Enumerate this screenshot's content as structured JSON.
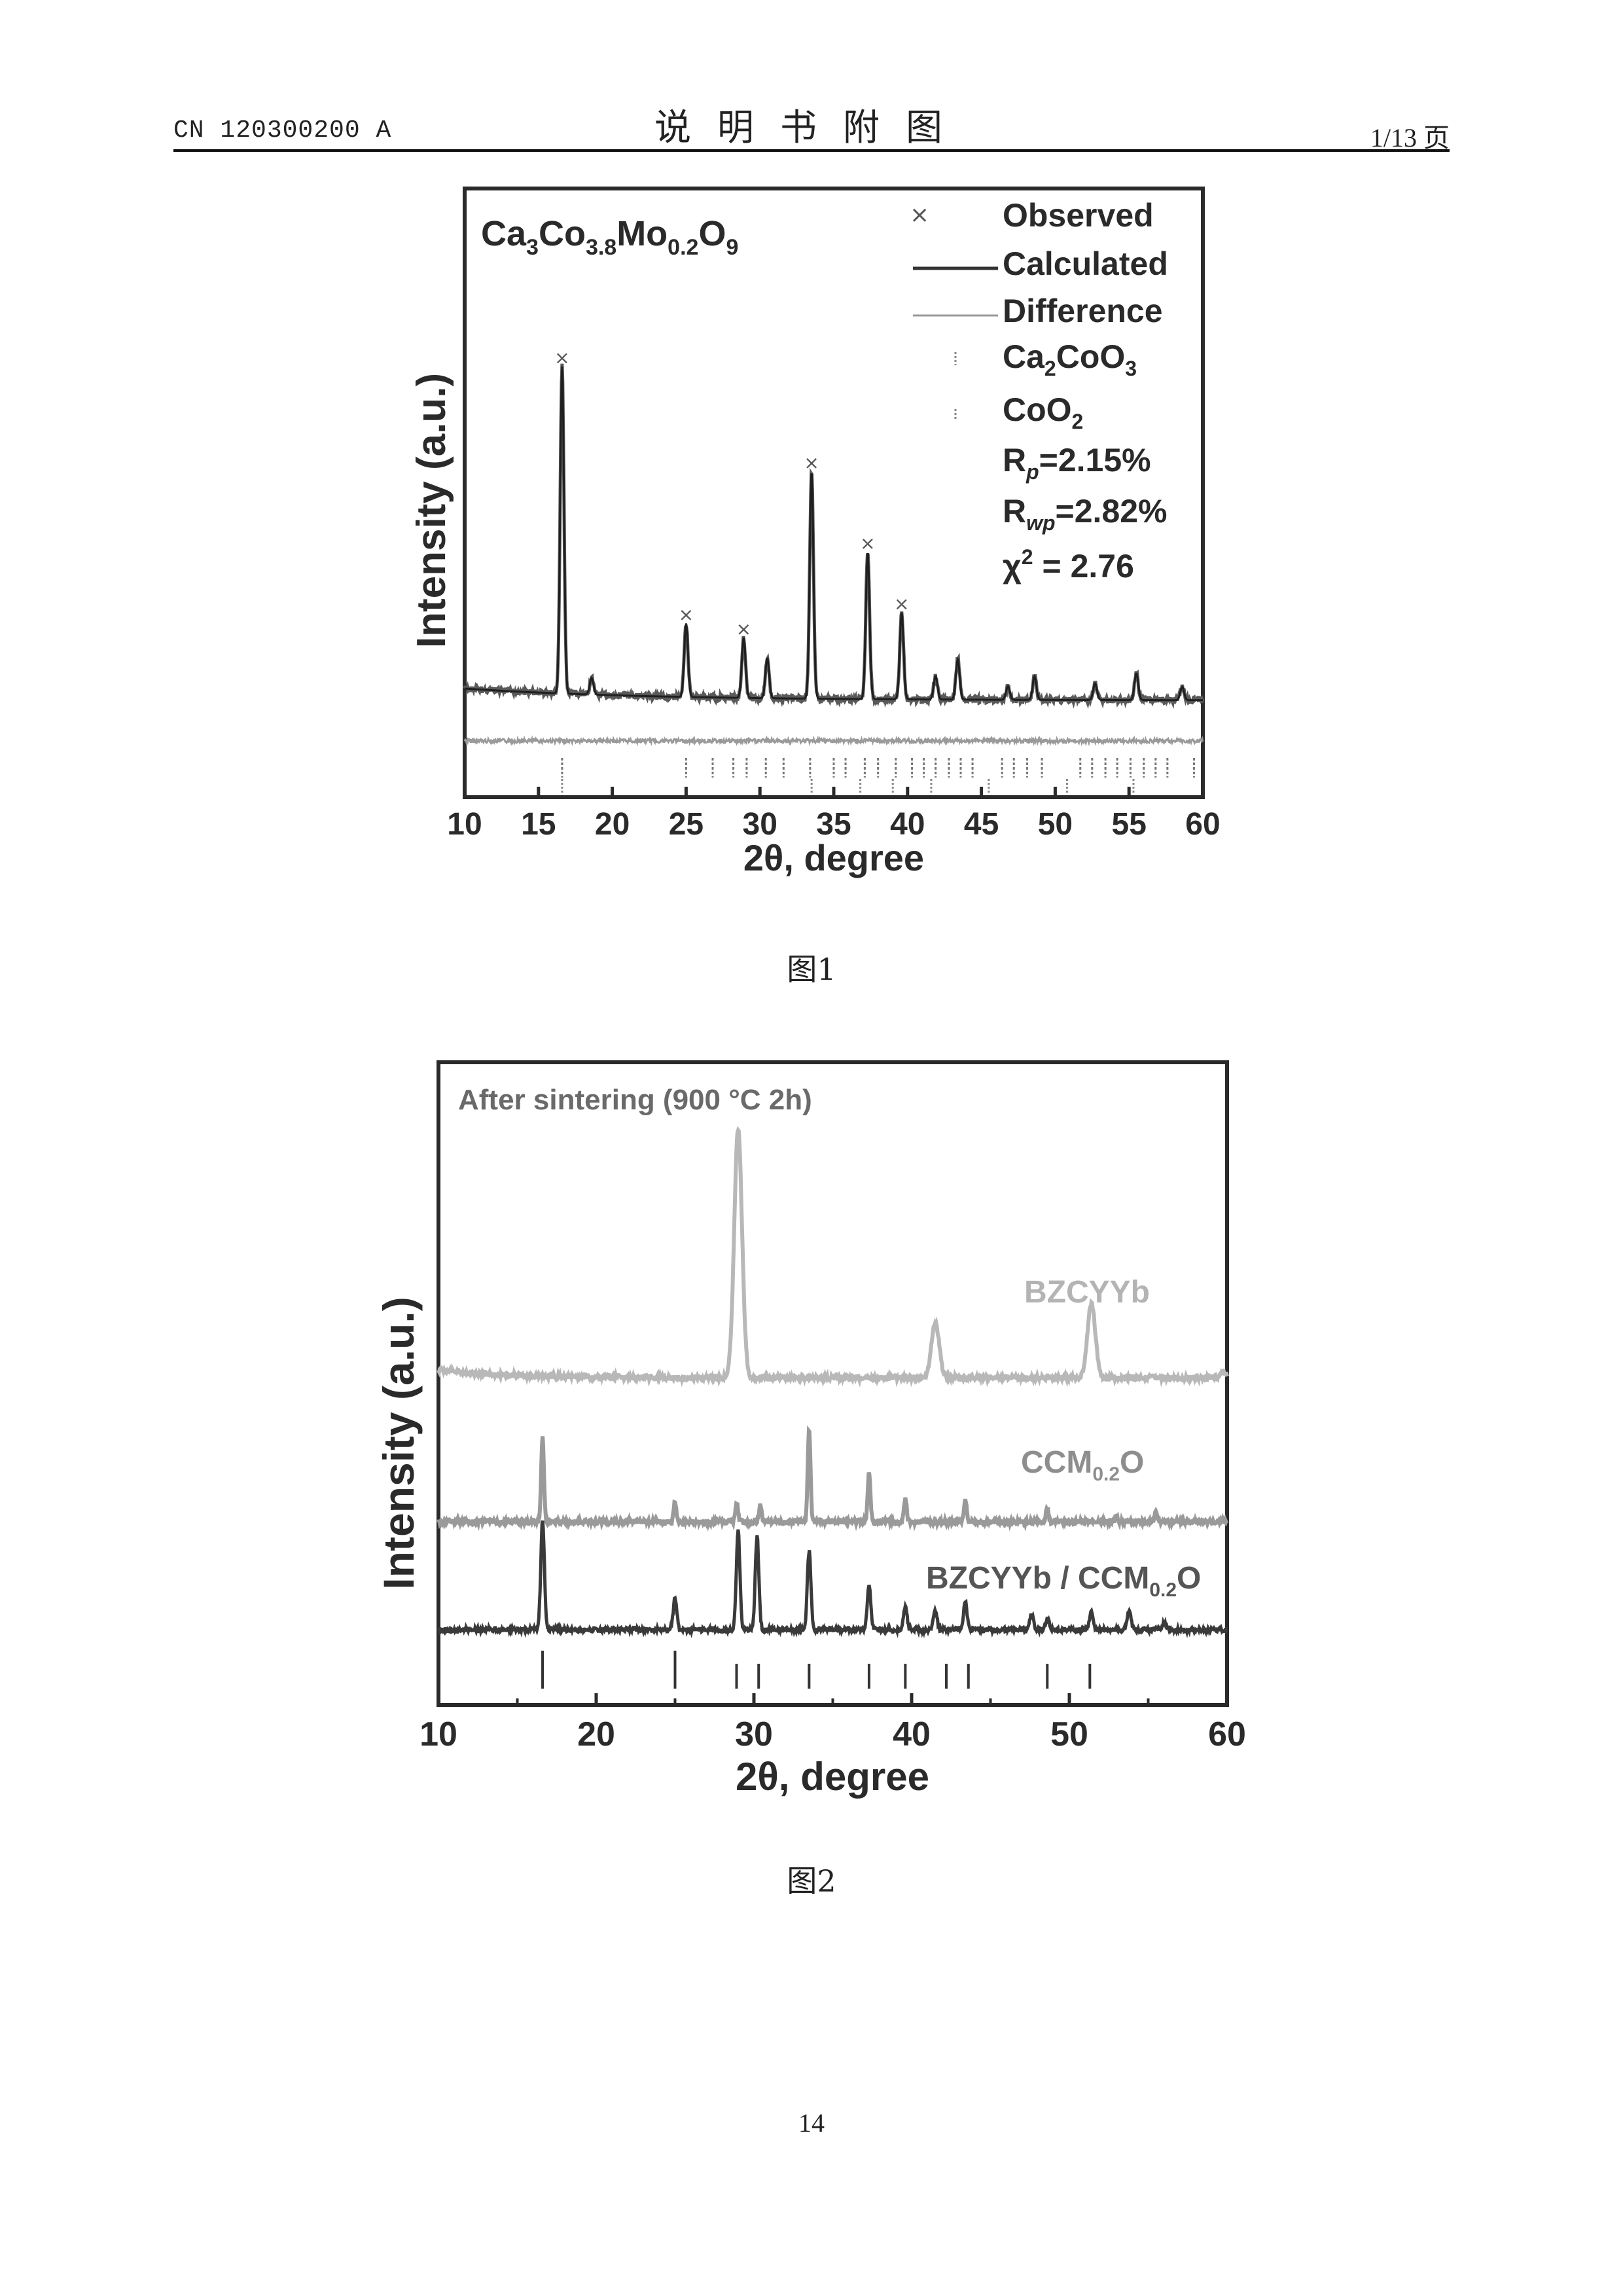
{
  "header": {
    "doc_number": "CN 120300200 A",
    "section_title": "说明书附图",
    "page_of": "1/13 页"
  },
  "footer": {
    "page_number": "14"
  },
  "chart_data": [
    {
      "type": "line",
      "caption": "图1",
      "formula_label": "Ca3Co3.8Mo0.2O9",
      "xlabel": "2θ, degree",
      "ylabel": "Intensity (a.u.)",
      "xlim": [
        10,
        60
      ],
      "x_ticks": [
        "10",
        "15",
        "20",
        "25",
        "30",
        "35",
        "40",
        "45",
        "50",
        "55",
        "60"
      ],
      "legend": [
        "Observed",
        "Calculated",
        "Difference",
        "Ca2CoO3",
        "CoO2"
      ],
      "fit_stats": [
        "Rp=2.15%",
        "Rwp=2.82%",
        "χ2 = 2.76"
      ],
      "peaks": [
        {
          "x": 16.6,
          "h": 0.98
        },
        {
          "x": 18.6,
          "h": 0.05
        },
        {
          "x": 25.0,
          "h": 0.22
        },
        {
          "x": 28.9,
          "h": 0.18
        },
        {
          "x": 30.5,
          "h": 0.12
        },
        {
          "x": 33.5,
          "h": 0.68
        },
        {
          "x": 37.3,
          "h": 0.44
        },
        {
          "x": 39.6,
          "h": 0.26
        },
        {
          "x": 41.9,
          "h": 0.07
        },
        {
          "x": 43.4,
          "h": 0.12
        },
        {
          "x": 46.8,
          "h": 0.04
        },
        {
          "x": 48.6,
          "h": 0.07
        },
        {
          "x": 52.7,
          "h": 0.05
        },
        {
          "x": 55.5,
          "h": 0.08
        },
        {
          "x": 58.6,
          "h": 0.04
        }
      ],
      "ticks_ca2coo3": [
        16.6,
        25.0,
        26.8,
        28.2,
        29.1,
        30.4,
        31.6,
        33.4,
        35.0,
        35.8,
        37.1,
        38.0,
        39.2,
        40.3,
        41.1,
        41.9,
        42.8,
        43.6,
        44.4,
        46.4,
        47.2,
        48.1,
        49.1,
        51.7,
        52.5,
        53.4,
        54.2,
        55.1,
        56.0,
        56.8,
        57.6,
        59.4
      ],
      "ticks_coo2": [
        16.6,
        33.5,
        36.8,
        39.0,
        41.6,
        45.5,
        50.8,
        55.3
      ]
    },
    {
      "type": "line",
      "caption": "图2",
      "annotation": "After sintering (900 °C 2h)",
      "xlabel": "2θ, degree",
      "ylabel": "Intensity (a.u.)",
      "xlim": [
        10,
        60
      ],
      "x_ticks": [
        "10",
        "20",
        "30",
        "40",
        "50",
        "60"
      ],
      "series": [
        {
          "name": "BZCYYb",
          "color": "#b8b8b8",
          "peaks": [
            {
              "x": 29.0,
              "h": 1.0
            },
            {
              "x": 41.5,
              "h": 0.22
            },
            {
              "x": 51.4,
              "h": 0.3
            },
            {
              "x": 59.8,
              "h": 0.02
            }
          ]
        },
        {
          "name": "CCM0.2O",
          "color": "#9a9a9a",
          "peaks": [
            {
              "x": 16.6,
              "h": 0.44
            },
            {
              "x": 25.0,
              "h": 0.1
            },
            {
              "x": 28.9,
              "h": 0.1
            },
            {
              "x": 30.4,
              "h": 0.08
            },
            {
              "x": 33.5,
              "h": 0.48
            },
            {
              "x": 37.3,
              "h": 0.26
            },
            {
              "x": 39.6,
              "h": 0.12
            },
            {
              "x": 43.4,
              "h": 0.12
            },
            {
              "x": 48.6,
              "h": 0.07
            },
            {
              "x": 53.0,
              "h": 0.03
            },
            {
              "x": 55.5,
              "h": 0.05
            }
          ]
        },
        {
          "name": "BZCYYb / CCM0.2O",
          "color": "#3a3a3a",
          "peaks": [
            {
              "x": 16.6,
              "h": 0.56
            },
            {
              "x": 25.0,
              "h": 0.16
            },
            {
              "x": 29.0,
              "h": 0.5
            },
            {
              "x": 30.2,
              "h": 0.48
            },
            {
              "x": 33.5,
              "h": 0.4
            },
            {
              "x": 37.3,
              "h": 0.22
            },
            {
              "x": 39.6,
              "h": 0.12
            },
            {
              "x": 41.5,
              "h": 0.1
            },
            {
              "x": 43.4,
              "h": 0.14
            },
            {
              "x": 47.6,
              "h": 0.08
            },
            {
              "x": 48.6,
              "h": 0.06
            },
            {
              "x": 51.4,
              "h": 0.1
            },
            {
              "x": 53.8,
              "h": 0.1
            },
            {
              "x": 56.0,
              "h": 0.04
            }
          ]
        }
      ],
      "reference_ticks": [
        16.6,
        25.0,
        28.9,
        30.3,
        33.5,
        37.3,
        39.6,
        42.2,
        43.6,
        48.6,
        51.3
      ]
    }
  ]
}
